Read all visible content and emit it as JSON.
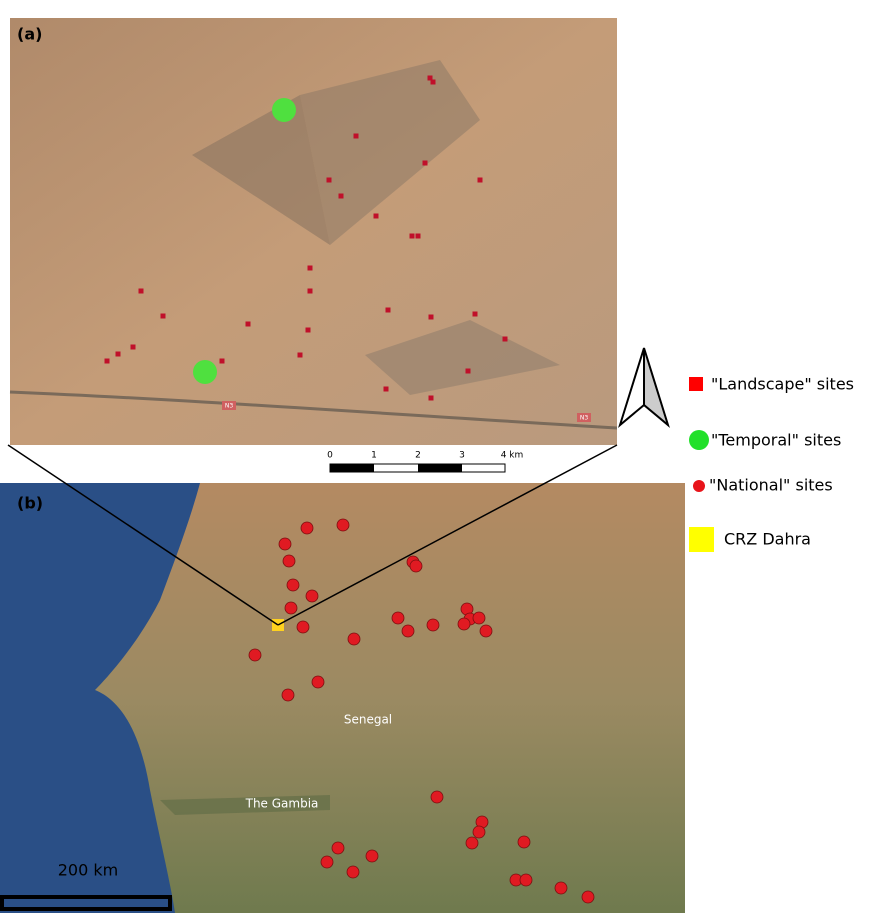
{
  "panel_a": {
    "label": "(a)",
    "road_labels": [
      "N3",
      "N3"
    ],
    "scale_bar": [
      "0",
      "1",
      "2",
      "3",
      "4 km"
    ]
  },
  "panel_b": {
    "label": "(b)",
    "country_labels": [
      "Senegal",
      "The Gambia"
    ],
    "scale_bar": "200 km"
  },
  "legend": [
    "\"Landscape\" sites",
    "\"Temporal\" sites",
    "\"National\" sites",
    "CRZ Dahra"
  ]
}
